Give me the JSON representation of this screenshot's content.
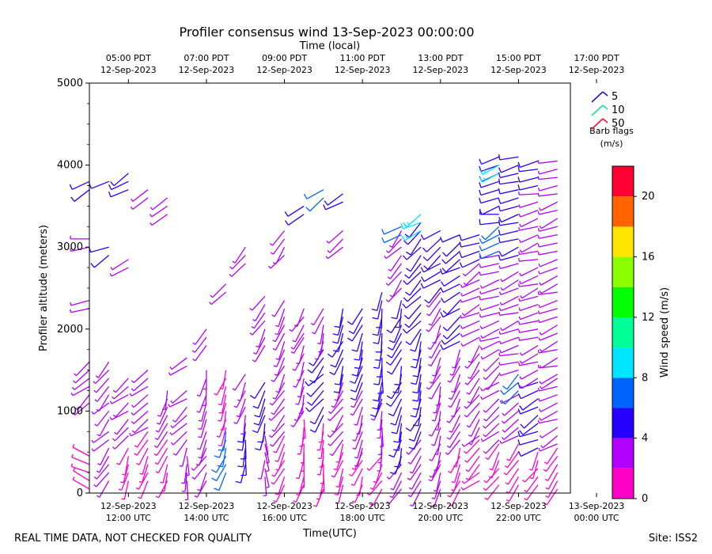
{
  "chart_data": {
    "type": "wind_barb_profile",
    "title": "Profiler consensus wind 13-Sep-2023 00:00:00",
    "top_axis_label": "Time (local)",
    "xlabel": "Time(UTC)",
    "ylabel": "Profiler altitude (meters)",
    "ylim": [
      0,
      5000
    ],
    "y_ticks": [
      0,
      1000,
      2000,
      3000,
      4000,
      5000
    ],
    "x_range_hours_utc": [
      11.0,
      23.33
    ],
    "bottom_ticks": [
      {
        "hour": 12,
        "line1": "12-Sep-2023",
        "line2": "12:00 UTC"
      },
      {
        "hour": 14,
        "line1": "12-Sep-2023",
        "line2": "14:00 UTC"
      },
      {
        "hour": 16,
        "line1": "12-Sep-2023",
        "line2": "16:00 UTC"
      },
      {
        "hour": 18,
        "line1": "12-Sep-2023",
        "line2": "18:00 UTC"
      },
      {
        "hour": 20,
        "line1": "12-Sep-2023",
        "line2": "20:00 UTC"
      },
      {
        "hour": 22,
        "line1": "12-Sep-2023",
        "line2": "22:00 UTC"
      },
      {
        "hour": 24,
        "line1": "13-Sep-2023",
        "line2": "00:00 UTC"
      }
    ],
    "top_ticks": [
      {
        "hour": 12,
        "line1": "05:00 PDT",
        "line2": "12-Sep-2023"
      },
      {
        "hour": 14,
        "line1": "07:00 PDT",
        "line2": "12-Sep-2023"
      },
      {
        "hour": 16,
        "line1": "09:00 PDT",
        "line2": "12-Sep-2023"
      },
      {
        "hour": 18,
        "line1": "11:00 PDT",
        "line2": "12-Sep-2023"
      },
      {
        "hour": 20,
        "line1": "13:00 PDT",
        "line2": "12-Sep-2023"
      },
      {
        "hour": 22,
        "line1": "15:00 PDT",
        "line2": "12-Sep-2023"
      },
      {
        "hour": 24,
        "line1": "17:00 PDT",
        "line2": "12-Sep-2023"
      }
    ],
    "legend": {
      "title_line1": "Barb flags",
      "title_line2": "(m/s)",
      "entries": [
        {
          "label": "5",
          "color": "#1a10d8"
        },
        {
          "label": "10",
          "color": "#10e890"
        },
        {
          "label": "50",
          "color": "#ff1030"
        }
      ]
    },
    "colorbar": {
      "label": "Wind speed (m/s)",
      "min": 0,
      "max": 22,
      "ticks": [
        0,
        4,
        8,
        12,
        16,
        20
      ],
      "bins": [
        {
          "from": 0,
          "to": 2,
          "color": "#ff00c8"
        },
        {
          "from": 2,
          "to": 4,
          "color": "#b400ff"
        },
        {
          "from": 4,
          "to": 6,
          "color": "#2800ff"
        },
        {
          "from": 6,
          "to": 8,
          "color": "#0064ff"
        },
        {
          "from": 8,
          "to": 10,
          "color": "#00e6ff"
        },
        {
          "from": 10,
          "to": 12,
          "color": "#00ff96"
        },
        {
          "from": 12,
          "to": 14,
          "color": "#00ff00"
        },
        {
          "from": 14,
          "to": 16,
          "color": "#8cff00"
        },
        {
          "from": 16,
          "to": 18,
          "color": "#ffe600"
        },
        {
          "from": 18,
          "to": 20,
          "color": "#ff6400"
        },
        {
          "from": 20,
          "to": 22,
          "color": "#ff0032"
        }
      ]
    },
    "profiles": [
      {
        "hour": 11.0,
        "segments": [
          [
            50,
            500,
            300,
            1
          ],
          [
            1100,
            1600,
            230,
            3
          ],
          [
            2250,
            2400,
            250,
            3
          ],
          [
            3000,
            3100,
            270,
            3
          ],
          [
            3700,
            3850,
            240,
            5
          ]
        ]
      },
      {
        "hour": 11.5,
        "segments": [
          [
            150,
            800,
            220,
            3
          ],
          [
            900,
            1600,
            220,
            3
          ],
          [
            2900,
            3050,
            240,
            5
          ],
          [
            3800,
            3880,
            250,
            5
          ]
        ]
      },
      {
        "hour": 12.0,
        "segments": [
          [
            150,
            600,
            200,
            1
          ],
          [
            700,
            1450,
            230,
            2
          ],
          [
            2750,
            2900,
            240,
            3
          ],
          [
            3700,
            3900,
            240,
            5
          ]
        ]
      },
      {
        "hour": 12.5,
        "segments": [
          [
            150,
            750,
            210,
            1
          ],
          [
            800,
            1550,
            230,
            2
          ],
          [
            3600,
            3700,
            240,
            3
          ]
        ]
      },
      {
        "hour": 13.0,
        "segments": [
          [
            150,
            700,
            200,
            1
          ],
          [
            750,
            1300,
            200,
            3
          ],
          [
            3400,
            3600,
            240,
            3
          ]
        ]
      },
      {
        "hour": 13.5,
        "segments": [
          [
            150,
            550,
            180,
            2
          ],
          [
            650,
            1300,
            230,
            2
          ],
          [
            1550,
            1650,
            230,
            3
          ]
        ]
      },
      {
        "hour": 14.0,
        "segments": [
          [
            150,
            800,
            210,
            3
          ],
          [
            900,
            1550,
            190,
            2
          ],
          [
            1800,
            2000,
            230,
            3
          ]
        ]
      },
      {
        "hour": 14.5,
        "segments": [
          [
            250,
            750,
            200,
            6
          ],
          [
            800,
            1550,
            200,
            1
          ],
          [
            2450,
            2600,
            240,
            3
          ]
        ]
      },
      {
        "hour": 15.0,
        "segments": [
          [
            350,
            900,
            190,
            5
          ],
          [
            950,
            1450,
            200,
            3
          ],
          [
            2800,
            3000,
            220,
            3
          ]
        ]
      },
      {
        "hour": 15.5,
        "segments": [
          [
            200,
            700,
            180,
            2
          ],
          [
            750,
            1400,
            200,
            5
          ],
          [
            1800,
            2400,
            210,
            3
          ]
        ]
      },
      {
        "hour": 16.0,
        "segments": [
          [
            100,
            700,
            200,
            1
          ],
          [
            750,
            1450,
            210,
            3
          ],
          [
            1550,
            2400,
            200,
            3
          ],
          [
            2900,
            3200,
            220,
            3
          ]
        ]
      },
      {
        "hour": 16.5,
        "segments": [
          [
            100,
            900,
            190,
            1
          ],
          [
            1000,
            1900,
            200,
            3
          ],
          [
            1950,
            2300,
            210,
            3
          ],
          [
            3400,
            3500,
            240,
            5
          ]
        ]
      },
      {
        "hour": 17.0,
        "segments": [
          [
            50,
            900,
            190,
            1
          ],
          [
            950,
            1800,
            220,
            5
          ],
          [
            1850,
            2300,
            200,
            3
          ],
          [
            3600,
            3700,
            240,
            6
          ]
        ]
      },
      {
        "hour": 17.5,
        "segments": [
          [
            100,
            600,
            200,
            1
          ],
          [
            650,
            1400,
            210,
            3
          ],
          [
            1450,
            2300,
            200,
            5
          ],
          [
            3000,
            3250,
            220,
            3
          ],
          [
            3550,
            3650,
            240,
            5
          ]
        ]
      },
      {
        "hour": 18.0,
        "segments": [
          [
            100,
            500,
            200,
            1
          ],
          [
            550,
            1300,
            200,
            3
          ],
          [
            1350,
            2300,
            200,
            5
          ]
        ]
      },
      {
        "hour": 18.5,
        "segments": [
          [
            50,
            450,
            210,
            1
          ],
          [
            500,
            1100,
            190,
            3
          ],
          [
            1150,
            2450,
            190,
            5
          ]
        ]
      },
      {
        "hour": 19.0,
        "segments": [
          [
            50,
            400,
            220,
            3
          ],
          [
            450,
            2400,
            200,
            5
          ],
          [
            2500,
            3200,
            220,
            3
          ],
          [
            3150,
            3300,
            240,
            6
          ]
        ]
      },
      {
        "hour": 19.5,
        "segments": [
          [
            50,
            700,
            220,
            3
          ],
          [
            750,
            1950,
            200,
            5
          ],
          [
            2000,
            3350,
            220,
            5
          ],
          [
            3200,
            3400,
            240,
            8
          ]
        ]
      },
      {
        "hour": 20.0,
        "segments": [
          [
            50,
            350,
            200,
            2
          ],
          [
            400,
            1300,
            200,
            3
          ],
          [
            1350,
            2450,
            210,
            3
          ],
          [
            2500,
            3200,
            230,
            5
          ]
        ]
      },
      {
        "hour": 20.5,
        "segments": [
          [
            50,
            600,
            200,
            1
          ],
          [
            650,
            1800,
            210,
            3
          ],
          [
            1850,
            2500,
            230,
            5
          ],
          [
            2550,
            3150,
            240,
            5
          ]
        ]
      },
      {
        "hour": 21.0,
        "segments": [
          [
            150,
            650,
            230,
            1
          ],
          [
            700,
            1850,
            220,
            3
          ],
          [
            1900,
            2800,
            240,
            3
          ],
          [
            2850,
            3200,
            250,
            5
          ]
        ]
      },
      {
        "hour": 21.5,
        "segments": [
          [
            100,
            600,
            210,
            1
          ],
          [
            650,
            1850,
            230,
            3
          ],
          [
            1900,
            2900,
            250,
            3
          ],
          [
            2950,
            3250,
            240,
            6
          ],
          [
            3300,
            4100,
            255,
            5
          ],
          [
            3900,
            4000,
            250,
            8
          ]
        ]
      },
      {
        "hour": 22.0,
        "segments": [
          [
            100,
            650,
            220,
            1
          ],
          [
            700,
            1200,
            240,
            3
          ],
          [
            1250,
            1450,
            230,
            7
          ],
          [
            1500,
            2850,
            250,
            3
          ],
          [
            2900,
            4100,
            250,
            5
          ]
        ]
      },
      {
        "hour": 22.5,
        "segments": [
          [
            100,
            500,
            210,
            1
          ],
          [
            550,
            1350,
            240,
            5
          ],
          [
            1400,
            2500,
            250,
            3
          ],
          [
            2550,
            3700,
            255,
            3
          ],
          [
            3750,
            4100,
            255,
            5
          ]
        ]
      },
      {
        "hour": 23.0,
        "segments": [
          [
            50,
            550,
            220,
            1
          ],
          [
            600,
            1400,
            245,
            3
          ],
          [
            1450,
            2500,
            250,
            3
          ],
          [
            2550,
            4100,
            250,
            3
          ]
        ]
      }
    ]
  },
  "footer": {
    "left_text": "REAL TIME DATA, NOT CHECKED FOR QUALITY",
    "right_text": "Site: ISS2"
  }
}
